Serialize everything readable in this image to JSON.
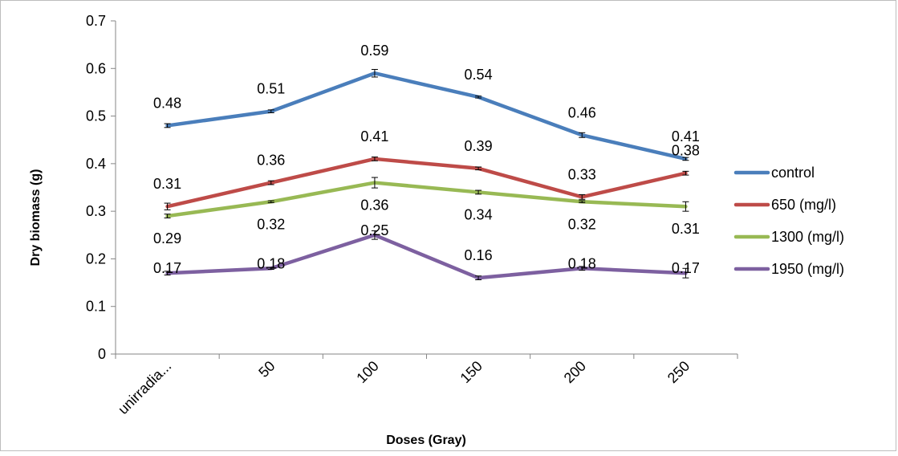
{
  "chart_data": {
    "type": "line",
    "categories": [
      "unirradia...",
      "50",
      "100",
      "150",
      "200",
      "250"
    ],
    "series": [
      {
        "name": "control",
        "color": "#4a7ebb",
        "values": [
          0.48,
          0.51,
          0.59,
          0.54,
          0.46,
          0.41
        ],
        "errors": [
          0.004,
          0.003,
          0.008,
          0.002,
          0.005,
          0.003
        ]
      },
      {
        "name": "650 (mg/l)",
        "color": "#be4b48",
        "values": [
          0.31,
          0.36,
          0.41,
          0.39,
          0.33,
          0.38
        ],
        "errors": [
          0.007,
          0.004,
          0.004,
          0.003,
          0.005,
          0.004
        ]
      },
      {
        "name": "1300 (mg/l)",
        "color": "#98b954",
        "values": [
          0.29,
          0.32,
          0.36,
          0.34,
          0.32,
          0.31
        ],
        "errors": [
          0.004,
          0.002,
          0.011,
          0.004,
          0.002,
          0.01
        ]
      },
      {
        "name": "1950 (mg/l)",
        "color": "#7d60a0",
        "values": [
          0.17,
          0.18,
          0.25,
          0.16,
          0.18,
          0.17
        ],
        "errors": [
          0.004,
          0.002,
          0.009,
          0.004,
          0.004,
          0.01
        ]
      }
    ],
    "data_labels": [
      [
        "0.48",
        "0.51",
        "0.59",
        "0.54",
        "0.46",
        "0.41"
      ],
      [
        "0.31",
        "0.36",
        "0.41",
        "0.39",
        "0.33",
        "0.38"
      ],
      [
        "0.29",
        "0.32",
        "0.36",
        "0.34",
        "0.32",
        "0.31"
      ],
      [
        "0.17",
        "0.18",
        "0.25",
        "0.16",
        "0.18",
        "0.17"
      ]
    ],
    "title": "",
    "xlabel": "Doses (Gray)",
    "ylabel": "Dry biomass (g)",
    "ylim": [
      0,
      0.7
    ],
    "yticks": [
      "0",
      "0.1",
      "0.2",
      "0.3",
      "0.4",
      "0.5",
      "0.6",
      "0.7"
    ],
    "grid": false,
    "legend_position": "right",
    "error_bars": true
  }
}
